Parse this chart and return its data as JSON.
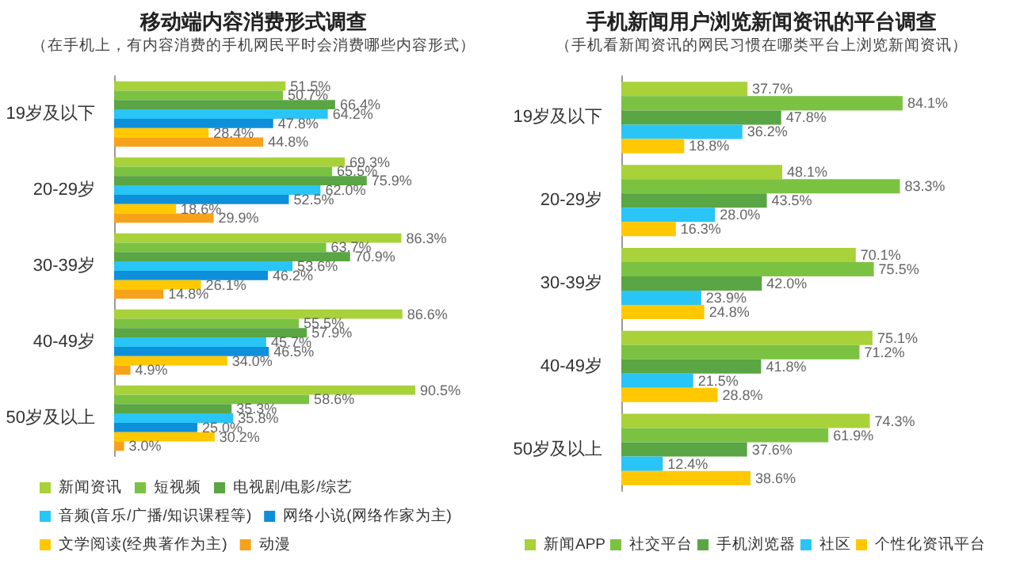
{
  "chart_data": [
    {
      "type": "bar",
      "orientation": "horizontal",
      "title": "移动端内容消费形式调查",
      "subtitle": "（在手机上，有内容消费的手机网民平时会消费哪些内容形式）",
      "categories": [
        "19岁及以下",
        "20-29岁",
        "30-39岁",
        "40-49岁",
        "50岁及以上"
      ],
      "legend": "bottom",
      "series": [
        {
          "name": "新闻资讯",
          "color": "#a8d13a",
          "values": [
            51.5,
            69.3,
            86.3,
            86.6,
            90.5
          ],
          "value_labels": [
            "51.5%",
            "69.3%",
            "86.3%",
            "86.6%",
            "90.5%"
          ]
        },
        {
          "name": "短视频",
          "color": "#7cc242",
          "values": [
            50.7,
            65.5,
            63.7,
            55.5,
            58.6
          ],
          "value_labels": [
            "50.7%",
            "65.5%",
            "63.7%",
            "55.5%",
            "58.6%"
          ]
        },
        {
          "name": "电视剧/电影/综艺",
          "color": "#5aa544",
          "values": [
            66.4,
            75.9,
            70.9,
            57.9,
            35.3
          ],
          "value_labels": [
            "66.4%",
            "75.9%",
            "70.9%",
            "57.9%",
            "35.3%"
          ]
        },
        {
          "name": "音频(音乐/广播/知识课程等)",
          "color": "#29c5f6",
          "values": [
            64.2,
            62.0,
            53.6,
            45.7,
            35.8
          ],
          "value_labels": [
            "64.2%",
            "62.0%",
            "53.6%",
            "45.7%",
            "35.8%"
          ]
        },
        {
          "name": "网络小说(网络作家为主)",
          "color": "#0e8fd9",
          "values": [
            47.8,
            52.5,
            46.2,
            46.5,
            25.0
          ],
          "value_labels": [
            "47.8%",
            "52.5%",
            "46.2%",
            "46.5%",
            "25.0%"
          ]
        },
        {
          "name": "文学阅读(经典著作为主)",
          "color": "#ffc800",
          "values": [
            28.4,
            18.6,
            26.1,
            34.0,
            30.2
          ],
          "value_labels": [
            "28.4%",
            "18.6%",
            "26.1%",
            "34.0%",
            "30.2%"
          ]
        },
        {
          "name": "动漫",
          "color": "#f7a21b",
          "values": [
            44.8,
            29.9,
            14.8,
            4.9,
            3.0
          ],
          "value_labels": [
            "44.8%",
            "29.9%",
            "14.8%",
            "4.9%",
            "3.0%"
          ]
        }
      ]
    },
    {
      "type": "bar",
      "orientation": "horizontal",
      "title": "手机新闻用户浏览新闻资讯的平台调查",
      "subtitle": "（手机看新闻资讯的网民习惯在哪类平台上浏览新闻资讯）",
      "categories": [
        "19岁及以下",
        "20-29岁",
        "30-39岁",
        "40-49岁",
        "50岁及以上"
      ],
      "legend": "bottom",
      "series": [
        {
          "name": "新闻APP",
          "color": "#a8d13a",
          "values": [
            37.7,
            48.1,
            70.1,
            75.1,
            74.3
          ],
          "value_labels": [
            "37.7%",
            "48.1%",
            "70.1%",
            "75.1%",
            "74.3%"
          ]
        },
        {
          "name": "社交平台",
          "color": "#7cc242",
          "values": [
            84.1,
            83.3,
            75.5,
            71.2,
            61.9
          ],
          "value_labels": [
            "84.1%",
            "83.3%",
            "75.5%",
            "71.2%",
            "61.9%"
          ]
        },
        {
          "name": "手机浏览器",
          "color": "#5aa544",
          "values": [
            47.8,
            43.5,
            42.0,
            41.8,
            37.6
          ],
          "value_labels": [
            "47.8%",
            "43.5%",
            "42.0%",
            "41.8%",
            "37.6%"
          ]
        },
        {
          "name": "社区",
          "color": "#29c5f6",
          "values": [
            36.2,
            28.0,
            23.9,
            21.5,
            12.4
          ],
          "value_labels": [
            "36.2%",
            "28.0%",
            "23.9%",
            "21.5%",
            "12.4%"
          ]
        },
        {
          "name": "个性化资讯平台",
          "color": "#ffc800",
          "values": [
            18.8,
            16.3,
            24.8,
            28.8,
            38.6
          ],
          "value_labels": [
            "18.8%",
            "16.3%",
            "24.8%",
            "28.8%",
            "38.6%"
          ]
        }
      ]
    }
  ]
}
